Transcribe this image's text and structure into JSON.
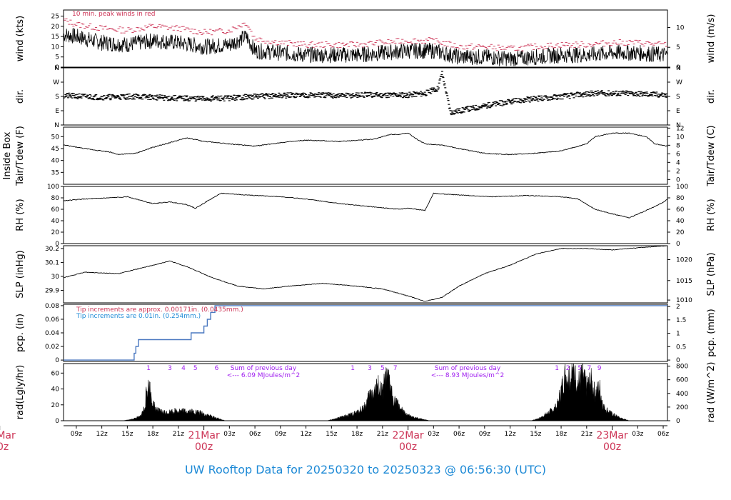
{
  "footer": {
    "title": "UW Rooftop Data for 20250320  to  20250323 @ 06:56:30  (UTC)"
  },
  "x_axis": {
    "range_hours": [
      7.5,
      78.5
    ],
    "hour_ticks": [
      {
        "h": 9,
        "label": "09z"
      },
      {
        "h": 12,
        "label": "12z"
      },
      {
        "h": 15,
        "label": "15z"
      },
      {
        "h": 18,
        "label": "18z"
      },
      {
        "h": 21,
        "label": "21z"
      },
      {
        "h": 27,
        "label": "03z"
      },
      {
        "h": 30,
        "label": "06z"
      },
      {
        "h": 33,
        "label": "09z"
      },
      {
        "h": 36,
        "label": "12z"
      },
      {
        "h": 39,
        "label": "15z"
      },
      {
        "h": 42,
        "label": "18z"
      },
      {
        "h": 45,
        "label": "21z"
      },
      {
        "h": 51,
        "label": "03z"
      },
      {
        "h": 54,
        "label": "06z"
      },
      {
        "h": 57,
        "label": "09z"
      },
      {
        "h": 60,
        "label": "12z"
      },
      {
        "h": 63,
        "label": "15z"
      },
      {
        "h": 66,
        "label": "18z"
      },
      {
        "h": 69,
        "label": "21z"
      },
      {
        "h": 75,
        "label": "03z"
      },
      {
        "h": 78,
        "label": "06z"
      }
    ],
    "day_ticks": [
      {
        "h": 0,
        "line1": "20Mar",
        "line2": "00z"
      },
      {
        "h": 24,
        "line1": "21Mar",
        "line2": "00z"
      },
      {
        "h": 48,
        "line1": "22Mar",
        "line2": "00z"
      },
      {
        "h": 72,
        "line1": "23Mar",
        "line2": "00z"
      }
    ]
  },
  "chart_data": [
    {
      "type": "line",
      "id": "wind",
      "ylabel": "wind (kts)",
      "ylabel_right": "wind (m/s)",
      "ylim": [
        0,
        28
      ],
      "yticks": [
        0,
        5,
        10,
        15,
        20,
        25
      ],
      "right_ticks": [
        {
          "label": "0",
          "v": 0
        },
        {
          "label": "5",
          "v": 9.72
        },
        {
          "label": "10",
          "v": 19.44
        }
      ],
      "annotation": "10 min. peak winds in red",
      "series": [
        {
          "kind": "wind",
          "color": "#000000",
          "x": [
            7.5,
            9,
            12,
            15,
            18,
            21,
            24,
            27,
            29,
            30,
            33,
            36,
            39,
            42,
            45,
            48,
            51,
            52,
            54,
            57,
            60,
            63,
            66,
            69,
            72,
            75,
            78,
            78.5
          ],
          "y": [
            16,
            15,
            12,
            11,
            13,
            12,
            10,
            11,
            15,
            8,
            7,
            6,
            6,
            6,
            7,
            8,
            8,
            7,
            5,
            5,
            4,
            5,
            6,
            6,
            7,
            7,
            6,
            6
          ]
        },
        {
          "kind": "gust",
          "color": "#cc3355",
          "x": [
            7.5,
            9,
            12,
            15,
            18,
            21,
            24,
            27,
            29,
            30,
            33,
            36,
            39,
            42,
            45,
            48,
            51,
            52,
            54,
            57,
            60,
            63,
            66,
            69,
            72,
            75,
            78,
            78.5
          ],
          "y": [
            23,
            21,
            19,
            18,
            20,
            19,
            17,
            18,
            22,
            14,
            12,
            11,
            11,
            11,
            12,
            13,
            13,
            12,
            10,
            10,
            9,
            10,
            11,
            11,
            12,
            12,
            11,
            11
          ]
        }
      ]
    },
    {
      "type": "scatter",
      "id": "dir",
      "ylabel": "dir.",
      "ylabel_right": "dir.",
      "ylim": [
        0,
        360
      ],
      "yticks": [
        {
          "label": "N",
          "v": 0
        },
        {
          "label": "E",
          "v": 90
        },
        {
          "label": "S",
          "v": 180
        },
        {
          "label": "W",
          "v": 270
        },
        {
          "label": "N",
          "v": 360
        }
      ],
      "series": [
        {
          "color": "#000000",
          "x": [
            7.5,
            12,
            16,
            20,
            24,
            27,
            30,
            33,
            36,
            40,
            44,
            48,
            50,
            51.5,
            52,
            53,
            55,
            58,
            62,
            66,
            70,
            74,
            78,
            78.5
          ],
          "y": [
            185,
            175,
            180,
            170,
            165,
            170,
            180,
            185,
            190,
            185,
            190,
            190,
            200,
            230,
            330,
            80,
            100,
            130,
            160,
            180,
            200,
            200,
            190,
            185
          ]
        }
      ]
    },
    {
      "type": "line",
      "id": "temp",
      "ylabel": "Tair/Tdew (F)",
      "ylabel2": "Inside Box",
      "ylabel_right": "Tair/Tdew (C)",
      "ylim": [
        30,
        54
      ],
      "yticks": [
        35,
        40,
        45,
        50
      ],
      "right_ticks": [
        {
          "label": "0",
          "v": 32
        },
        {
          "label": "2",
          "v": 35.6
        },
        {
          "label": "4",
          "v": 39.2
        },
        {
          "label": "6",
          "v": 42.8
        },
        {
          "label": "8",
          "v": 46.4
        },
        {
          "label": "10",
          "v": 50
        },
        {
          "label": "12",
          "v": 53.6
        }
      ],
      "series": [
        {
          "color": "#000000",
          "x": [
            7.5,
            10,
            13,
            14,
            16,
            18,
            20,
            22,
            24,
            27,
            30,
            33,
            36,
            40,
            44,
            46,
            47,
            48,
            49,
            50,
            52,
            54,
            57,
            60,
            63,
            66,
            69,
            70,
            72,
            74,
            76,
            77,
            78.5
          ],
          "y": [
            46.5,
            45,
            43.5,
            42.5,
            43,
            45.5,
            47.5,
            49.5,
            48,
            47,
            46,
            47.5,
            48.5,
            48,
            49,
            51,
            51,
            51.5,
            49,
            47,
            46.5,
            45,
            43,
            42.5,
            43,
            44,
            47,
            50,
            51.5,
            51.5,
            50,
            47,
            46
          ]
        }
      ]
    },
    {
      "type": "line",
      "id": "rh",
      "ylabel": "RH (%)",
      "ylabel_right": "RH (%)",
      "ylim": [
        0,
        100
      ],
      "yticks": [
        0,
        20,
        40,
        60,
        80,
        100
      ],
      "right_ticks": [
        {
          "label": "0",
          "v": 0
        },
        {
          "label": "20",
          "v": 20
        },
        {
          "label": "40",
          "v": 40
        },
        {
          "label": "60",
          "v": 60
        },
        {
          "label": "80",
          "v": 80
        },
        {
          "label": "100",
          "v": 100
        }
      ],
      "series": [
        {
          "color": "#000000",
          "x": [
            7.5,
            10,
            13,
            15,
            18,
            20,
            22,
            23,
            26,
            29,
            33,
            36,
            40,
            44,
            47,
            48,
            50,
            51,
            54,
            58,
            62,
            66,
            68,
            70,
            72,
            74,
            76,
            78,
            78.5
          ],
          "y": [
            75,
            78,
            80,
            82,
            70,
            73,
            68,
            62,
            88,
            85,
            82,
            78,
            70,
            64,
            60,
            62,
            58,
            88,
            85,
            82,
            84,
            82,
            78,
            60,
            52,
            45,
            58,
            72,
            78
          ]
        }
      ]
    },
    {
      "type": "line",
      "id": "slp",
      "ylabel": "SLP (inHg)",
      "ylabel_right": "SLP (hPa)",
      "ylim": [
        29.81,
        30.22
      ],
      "yticks": [
        29.9,
        30.0,
        30.1,
        30.2
      ],
      "right_ticks": [
        {
          "label": "1010",
          "v": 29.83
        },
        {
          "label": "1015",
          "v": 29.97
        },
        {
          "label": "1020",
          "v": 30.12
        }
      ],
      "series": [
        {
          "color": "#000000",
          "x": [
            7.5,
            10,
            14,
            18,
            20,
            22,
            25,
            28,
            31,
            34,
            38,
            42,
            45,
            48,
            50,
            52,
            54,
            57,
            60,
            63,
            66,
            69,
            72,
            74,
            76,
            78.5
          ],
          "y": [
            29.99,
            30.03,
            30.02,
            30.08,
            30.11,
            30.07,
            29.99,
            29.93,
            29.91,
            29.93,
            29.95,
            29.93,
            29.91,
            29.86,
            29.82,
            29.85,
            29.93,
            30.02,
            30.08,
            30.16,
            30.2,
            30.2,
            30.19,
            30.2,
            30.21,
            30.22
          ]
        }
      ]
    },
    {
      "type": "line",
      "id": "pcp",
      "ylabel": "pcp. (in)",
      "ylabel_right": "pcp. (mm)",
      "ylim": [
        -0.002,
        0.082
      ],
      "yticks": [
        0,
        0.02,
        0.04,
        0.06,
        0.08
      ],
      "right_ticks": [
        {
          "label": "0",
          "v": 0
        },
        {
          "label": "0.5",
          "v": 0.0197
        },
        {
          "label": "1",
          "v": 0.0394
        },
        {
          "label": "1.5",
          "v": 0.0591
        },
        {
          "label": "2",
          "v": 0.0787
        }
      ],
      "note_red": "Tip increments are approx. 0.00171in. (0.0435mm.)",
      "note_blue": "Tip increments are 0.01in. (0.254mm.)",
      "series": [
        {
          "color": "#4a78c0",
          "x": [
            7.5,
            15.8,
            15.8,
            16.0,
            16.0,
            16.3,
            16.3,
            22.5,
            22.5,
            24.0,
            24.0,
            24.4,
            24.4,
            24.8,
            24.8,
            25.3,
            25.3,
            26.0,
            26.0,
            78.5
          ],
          "y": [
            0,
            0,
            0.01,
            0.01,
            0.02,
            0.02,
            0.03,
            0.03,
            0.04,
            0.04,
            0.05,
            0.05,
            0.06,
            0.06,
            0.07,
            0.07,
            0.08,
            0.08,
            0.08,
            0.08
          ]
        }
      ]
    },
    {
      "type": "area",
      "id": "rad",
      "ylabel": "rad(Lgly/hr)",
      "ylabel_right": "rad (W/m^2)",
      "ylim": [
        0,
        72
      ],
      "yticks": [
        0,
        20,
        40,
        60
      ],
      "right_ticks": [
        {
          "label": "0",
          "v": 0
        },
        {
          "label": "200",
          "v": 17.2
        },
        {
          "label": "400",
          "v": 34.4
        },
        {
          "label": "600",
          "v": 51.6
        },
        {
          "label": "800",
          "v": 68.8
        }
      ],
      "uv_labels": [
        {
          "h": 17.5,
          "label": "1"
        },
        {
          "h": 20,
          "label": "3"
        },
        {
          "h": 21.6,
          "label": "4"
        },
        {
          "h": 23,
          "label": "5"
        },
        {
          "h": 25.5,
          "label": "6"
        },
        {
          "h": 41.5,
          "label": "1"
        },
        {
          "h": 43.5,
          "label": "3"
        },
        {
          "h": 45,
          "label": "5"
        },
        {
          "h": 46.5,
          "label": "7"
        },
        {
          "h": 65.5,
          "label": "1"
        },
        {
          "h": 66.8,
          "label": "2"
        },
        {
          "h": 68.2,
          "label": "5"
        },
        {
          "h": 69.3,
          "label": "7"
        },
        {
          "h": 70.5,
          "label": "9"
        }
      ],
      "day_notes": [
        {
          "h": 31,
          "line1": "Sum of previous day",
          "line2": "<--- 6.09 MJoules/m^2"
        },
        {
          "h": 55,
          "line1": "Sum of previous day",
          "line2": "<--- 8.93 MJoules/m^2"
        }
      ],
      "series": [
        {
          "color": "#000000",
          "x": [
            14.5,
            15.5,
            16.5,
            17.0,
            17.3,
            17.6,
            18.0,
            18.5,
            19.5,
            21,
            22.5,
            23.5,
            24.5,
            25.5,
            26.5,
            38.5,
            39.5,
            41,
            42,
            43,
            43.5,
            44,
            44.5,
            45,
            45.3,
            45.8,
            46.2,
            47,
            47.5,
            48.5,
            49.5,
            50.5,
            62.5,
            63.5,
            64.5,
            65.5,
            66,
            66.5,
            67,
            67.5,
            68,
            68.5,
            69,
            69.5,
            70,
            70.5,
            71,
            72,
            73,
            74
          ],
          "y": [
            0,
            2,
            6,
            18,
            45,
            50,
            25,
            15,
            12,
            15,
            14,
            12,
            8,
            4,
            0,
            0,
            3,
            8,
            12,
            22,
            38,
            45,
            50,
            40,
            60,
            58,
            35,
            20,
            12,
            5,
            3,
            0,
            0,
            4,
            12,
            20,
            45,
            70,
            60,
            72,
            55,
            68,
            50,
            60,
            40,
            50,
            20,
            10,
            4,
            0
          ]
        }
      ]
    }
  ]
}
